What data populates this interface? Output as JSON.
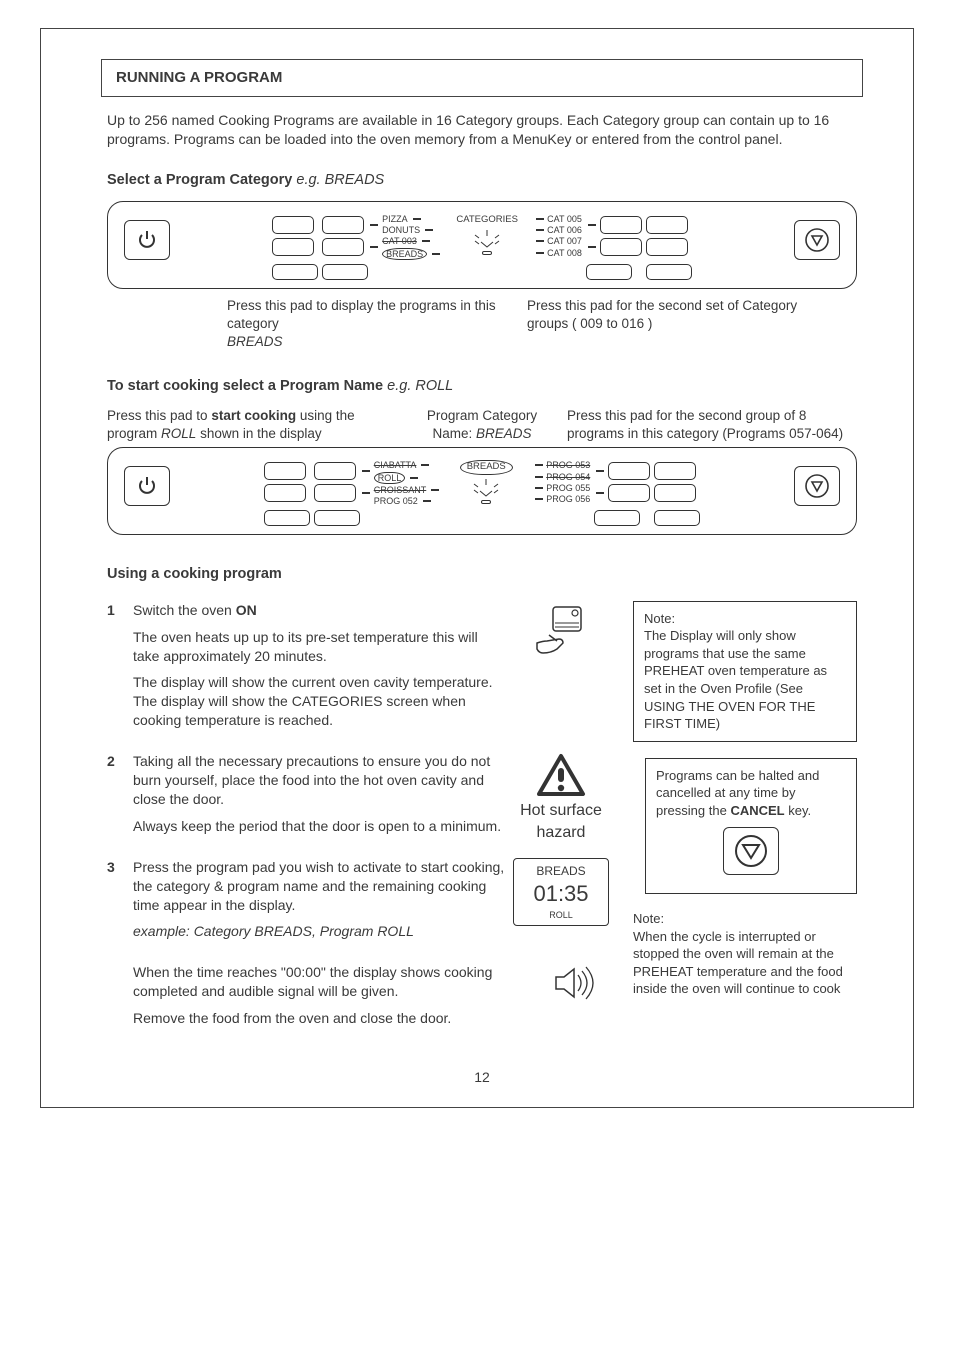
{
  "page_number": "12",
  "heading": "RUNNING A PROGRAM",
  "intro": "Up to 256 named Cooking Programs are available in 16 Category groups. Each Category group can contain up to 16 programs. Programs can be loaded into the oven memory from a MenuKey or entered from the control panel.",
  "select_heading": "Select a Program Category",
  "select_eg": "e.g. BREADS",
  "panel1": {
    "center_title": "CATEGORIES",
    "left_items": [
      {
        "label": "PIZZA"
      },
      {
        "label": "DONUTS"
      },
      {
        "label": "CAT 003",
        "strike": true
      },
      {
        "label": "BREADS",
        "circled": true
      }
    ],
    "right_items": [
      {
        "label": "CAT 005"
      },
      {
        "label": "CAT 006"
      },
      {
        "label": "CAT 007"
      },
      {
        "label": "CAT 008"
      }
    ],
    "caption_left_a": "Press this pad to display  the programs in this category",
    "caption_left_b": "BREADS",
    "caption_right": "Press this pad for the second set of Category groups ( 009 to 016 )"
  },
  "start_heading": "To start cooking select a Program Name",
  "start_eg": "e.g. ROLL",
  "annot": {
    "left_a": "Press this pad to ",
    "left_b": "start cooking",
    "left_c": " using the program ",
    "left_d": "ROLL",
    "left_e": " shown in the display",
    "mid_a": "Program Category Name: ",
    "mid_b": "BREADS",
    "right": "Press this pad for the second group of 8 programs in this category (Programs 057-064)"
  },
  "panel2": {
    "center_title": "BREADS",
    "left_items": [
      {
        "label": "CIABATTA",
        "strike": true
      },
      {
        "label": "ROLL",
        "circled": true
      },
      {
        "label": "CROISSANT",
        "strike": true
      },
      {
        "label": "PROG 052"
      }
    ],
    "right_items": [
      {
        "label": "PROG 053",
        "strike": true
      },
      {
        "label": "PROG 054",
        "strike": true
      },
      {
        "label": "PROG 055"
      },
      {
        "label": "PROG 056"
      }
    ]
  },
  "using_heading": "Using a cooking program",
  "steps": {
    "s1": {
      "a": "Switch the oven ",
      "b": "ON",
      "p1": "The oven heats up up to its pre-set temperature this will take approximately 20 minutes.",
      "p2": "The display will show the current oven cavity temperature. The display will show the CATEGORIES screen when cooking  temperature is reached."
    },
    "s2": {
      "p1": "Taking all the necessary precautions to ensure you do not burn yourself, place the food into the hot oven cavity and close the door.",
      "p2": "Always keep the period that the door is open to a minimum.",
      "hot1": "Hot surface",
      "hot2": "hazard"
    },
    "s3": {
      "p1": "Press the program pad you wish to activate to start cooking, the category & program name and the remaining cooking time appear in the display.",
      "ex": "example:  Category BREADS, Program ROLL",
      "display_top": "BREADS",
      "display_time": "01:35",
      "display_bot": "ROLL",
      "p2": "When the time reaches \"00:00\" the display shows cooking completed and audible signal will be given.",
      "p3": "Remove the food from the oven and close the door."
    }
  },
  "side": {
    "note1_title": "Note:",
    "note1_body": "The Display will only show programs that use the same PREHEAT oven  temperature as set in the Oven Profile (See USING THE OVEN FOR THE FIRST TIME)",
    "halt_a": "Programs can be halted and cancelled at any time by pressing the ",
    "halt_b": "CANCEL",
    "halt_c": " key.",
    "note2_title": "Note:",
    "note2_body": "When the cycle is interrupted or stopped the oven will remain at the PREHEAT temperature and the food inside the oven will continue to cook"
  }
}
